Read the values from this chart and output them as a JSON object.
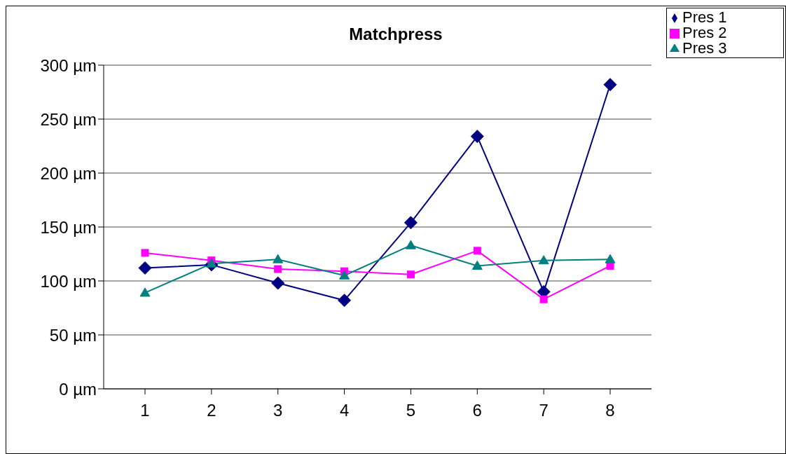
{
  "chart_data": {
    "type": "line",
    "title": "Matchpress",
    "categories": [
      "1",
      "2",
      "3",
      "4",
      "5",
      "6",
      "7",
      "8"
    ],
    "series": [
      {
        "name": "Pres 1",
        "color": "#000080",
        "marker": "diamond",
        "values": [
          112,
          115,
          98,
          82,
          154,
          234,
          90,
          282
        ]
      },
      {
        "name": "Pres 2",
        "color": "#ff00ff",
        "marker": "square",
        "values": [
          126,
          119,
          111,
          109,
          106,
          128,
          83,
          114
        ]
      },
      {
        "name": "Pres 3",
        "color": "#008080",
        "marker": "triangle",
        "values": [
          89,
          116,
          120,
          105,
          133,
          114,
          119,
          120
        ]
      }
    ],
    "ylim": [
      0,
      300
    ],
    "yticks": [
      {
        "value": 0,
        "label": "0 µm"
      },
      {
        "value": 50,
        "label": "50 µm"
      },
      {
        "value": 100,
        "label": "100 µm"
      },
      {
        "value": 150,
        "label": "150 µm"
      },
      {
        "value": 200,
        "label": "200 µm"
      },
      {
        "value": 250,
        "label": "250 µm"
      },
      {
        "value": 300,
        "label": "300 µm"
      }
    ],
    "grid": "y",
    "legend": "top right",
    "line_style": "solid"
  }
}
